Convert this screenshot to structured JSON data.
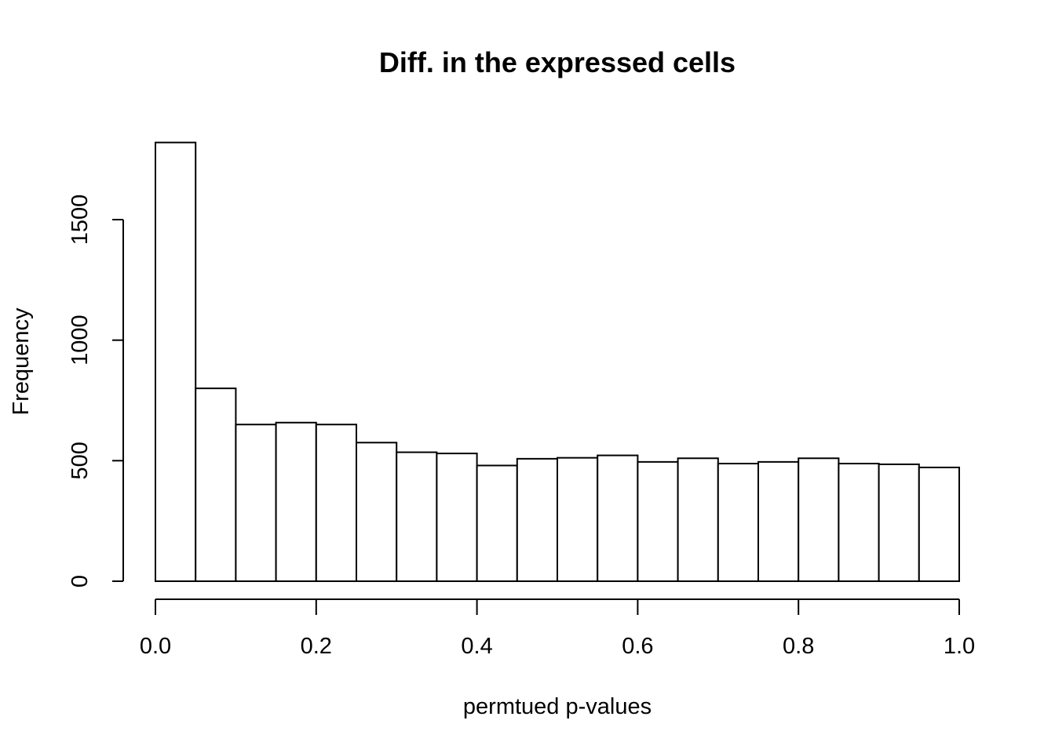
{
  "chart_data": {
    "type": "bar",
    "title": "Diff. in the expressed cells",
    "xlabel": "permtued p-values",
    "ylabel": "Frequency",
    "bin_edges": [
      0.0,
      0.05,
      0.1,
      0.15,
      0.2,
      0.25,
      0.3,
      0.35,
      0.4,
      0.45,
      0.5,
      0.55,
      0.6,
      0.65,
      0.7,
      0.75,
      0.8,
      0.85,
      0.9,
      0.95,
      1.0
    ],
    "values": [
      1820,
      800,
      650,
      658,
      650,
      575,
      535,
      530,
      480,
      508,
      512,
      522,
      495,
      510,
      488,
      495,
      510,
      488,
      485,
      472
    ],
    "xlim": [
      0.0,
      1.0
    ],
    "ylim": [
      0,
      1850
    ],
    "x_ticks": [
      0.0,
      0.2,
      0.4,
      0.6,
      0.8,
      1.0
    ],
    "x_tick_labels": [
      "0.0",
      "0.2",
      "0.4",
      "0.6",
      "0.8",
      "1.0"
    ],
    "y_ticks": [
      0,
      500,
      1000,
      1500
    ],
    "y_tick_labels": [
      "0",
      "500",
      "1000",
      "1500"
    ],
    "grid": false,
    "bar_fill": "#ffffff",
    "bar_stroke": "#000000"
  }
}
